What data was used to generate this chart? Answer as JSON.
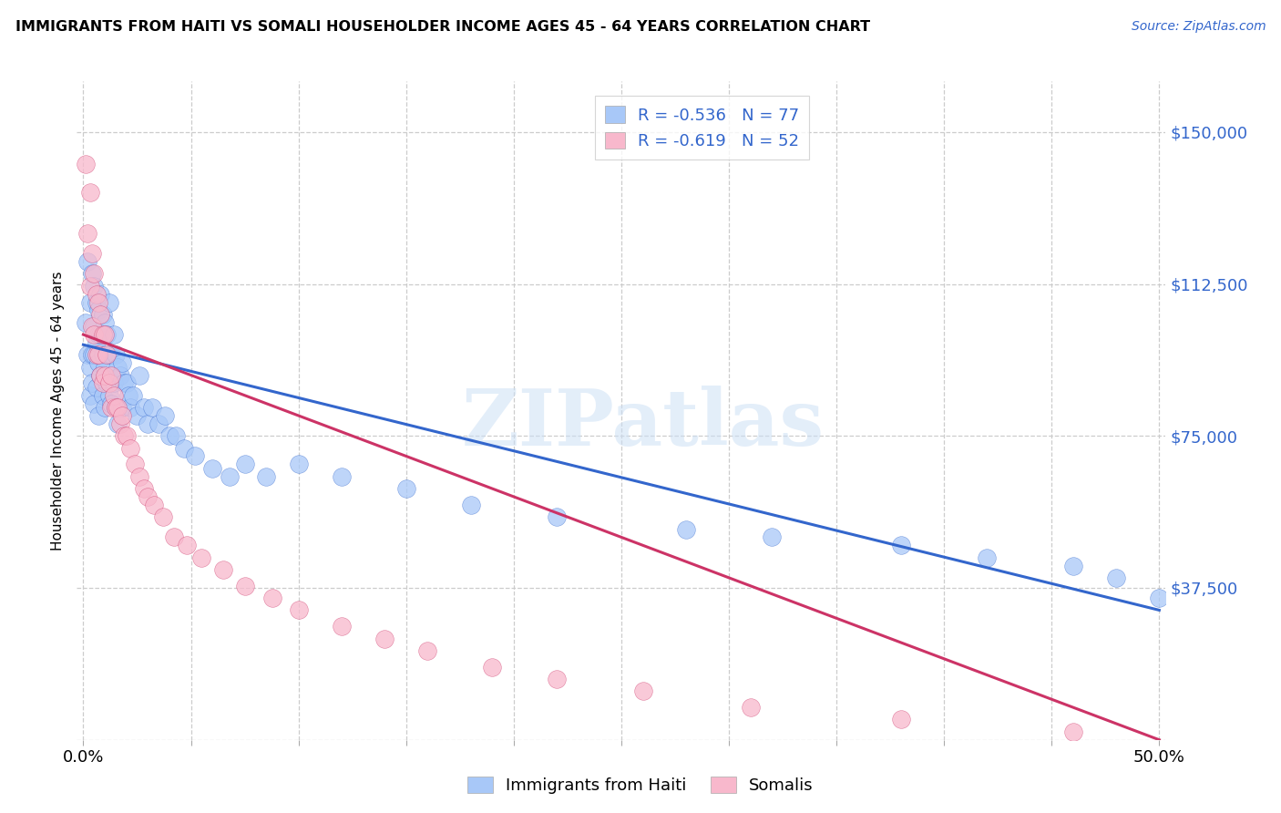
{
  "title": "IMMIGRANTS FROM HAITI VS SOMALI HOUSEHOLDER INCOME AGES 45 - 64 YEARS CORRELATION CHART",
  "source": "Source: ZipAtlas.com",
  "ylabel": "Householder Income Ages 45 - 64 years",
  "xlim": [
    -0.003,
    0.503
  ],
  "ylim": [
    0,
    162500
  ],
  "yticks": [
    0,
    37500,
    75000,
    112500,
    150000
  ],
  "ytick_labels": [
    "",
    "$37,500",
    "$75,000",
    "$112,500",
    "$150,000"
  ],
  "xtick_positions": [
    0.0,
    0.05,
    0.1,
    0.15,
    0.2,
    0.25,
    0.3,
    0.35,
    0.4,
    0.45,
    0.5
  ],
  "xtick_labels": [
    "0.0%",
    "",
    "",
    "",
    "",
    "",
    "",
    "",
    "",
    "",
    "50.0%"
  ],
  "haiti_color": "#a8c8f8",
  "haiti_line_color": "#3366cc",
  "somali_color": "#f8b8cc",
  "somali_line_color": "#cc3366",
  "haiti_R": -0.536,
  "haiti_N": 77,
  "somali_R": -0.619,
  "somali_N": 52,
  "legend_label_haiti": "Immigrants from Haiti",
  "legend_label_somali": "Somalis",
  "watermark": "ZIPatlas",
  "haiti_line_x0": 0.0,
  "haiti_line_y0": 97500,
  "haiti_line_x1": 0.5,
  "haiti_line_y1": 32000,
  "somali_line_x0": 0.0,
  "somali_line_y0": 100000,
  "somali_line_x1": 0.5,
  "somali_line_y1": 0,
  "haiti_x": [
    0.001,
    0.002,
    0.002,
    0.003,
    0.003,
    0.003,
    0.004,
    0.004,
    0.004,
    0.005,
    0.005,
    0.005,
    0.005,
    0.006,
    0.006,
    0.006,
    0.007,
    0.007,
    0.007,
    0.007,
    0.008,
    0.008,
    0.008,
    0.009,
    0.009,
    0.009,
    0.01,
    0.01,
    0.01,
    0.011,
    0.011,
    0.012,
    0.012,
    0.012,
    0.013,
    0.013,
    0.014,
    0.014,
    0.015,
    0.015,
    0.016,
    0.016,
    0.017,
    0.018,
    0.018,
    0.019,
    0.02,
    0.021,
    0.022,
    0.023,
    0.025,
    0.026,
    0.028,
    0.03,
    0.032,
    0.035,
    0.038,
    0.04,
    0.043,
    0.047,
    0.052,
    0.06,
    0.068,
    0.075,
    0.085,
    0.1,
    0.12,
    0.15,
    0.18,
    0.22,
    0.28,
    0.32,
    0.38,
    0.42,
    0.46,
    0.48,
    0.5
  ],
  "haiti_y": [
    103000,
    95000,
    118000,
    108000,
    92000,
    85000,
    115000,
    95000,
    88000,
    112000,
    102000,
    95000,
    83000,
    108000,
    98000,
    87000,
    106000,
    100000,
    93000,
    80000,
    110000,
    100000,
    90000,
    105000,
    95000,
    85000,
    103000,
    92000,
    82000,
    100000,
    88000,
    108000,
    95000,
    85000,
    95000,
    83000,
    100000,
    88000,
    95000,
    82000,
    92000,
    78000,
    90000,
    93000,
    82000,
    88000,
    88000,
    85000,
    82000,
    85000,
    80000,
    90000,
    82000,
    78000,
    82000,
    78000,
    80000,
    75000,
    75000,
    72000,
    70000,
    67000,
    65000,
    68000,
    65000,
    68000,
    65000,
    62000,
    58000,
    55000,
    52000,
    50000,
    48000,
    45000,
    43000,
    40000,
    35000
  ],
  "somali_x": [
    0.001,
    0.002,
    0.003,
    0.003,
    0.004,
    0.004,
    0.005,
    0.005,
    0.006,
    0.006,
    0.007,
    0.007,
    0.008,
    0.008,
    0.009,
    0.009,
    0.01,
    0.01,
    0.011,
    0.012,
    0.013,
    0.013,
    0.014,
    0.015,
    0.016,
    0.017,
    0.018,
    0.019,
    0.02,
    0.022,
    0.024,
    0.026,
    0.028,
    0.03,
    0.033,
    0.037,
    0.042,
    0.048,
    0.055,
    0.065,
    0.075,
    0.088,
    0.1,
    0.12,
    0.14,
    0.16,
    0.19,
    0.22,
    0.26,
    0.31,
    0.38,
    0.46
  ],
  "somali_y": [
    142000,
    125000,
    135000,
    112000,
    120000,
    102000,
    115000,
    100000,
    110000,
    95000,
    108000,
    95000,
    105000,
    90000,
    100000,
    88000,
    100000,
    90000,
    95000,
    88000,
    90000,
    82000,
    85000,
    82000,
    82000,
    78000,
    80000,
    75000,
    75000,
    72000,
    68000,
    65000,
    62000,
    60000,
    58000,
    55000,
    50000,
    48000,
    45000,
    42000,
    38000,
    35000,
    32000,
    28000,
    25000,
    22000,
    18000,
    15000,
    12000,
    8000,
    5000,
    2000
  ]
}
